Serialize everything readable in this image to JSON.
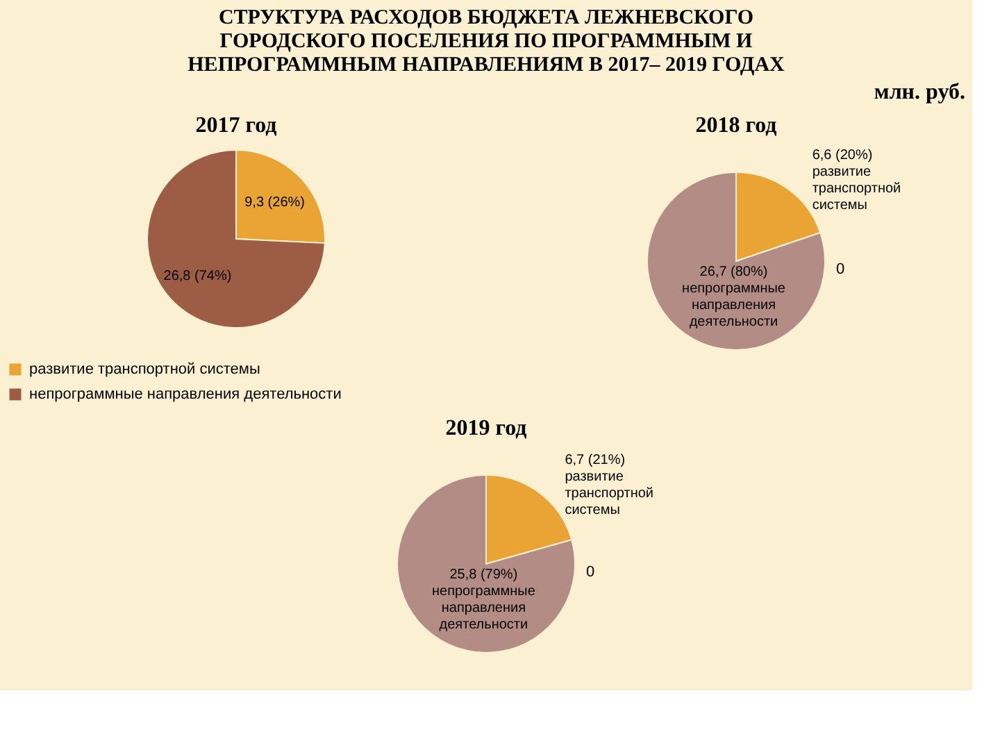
{
  "chart_data": [
    {
      "type": "other",
      "title": "СТРУКТУРА РАСХОДОВ БЮДЖЕТА ЛЕЖНЕВСКОГО ГОРОДСКОГО ПОСЕЛЕНИЯ ПО ПРОГРАММНЫМ И НЕПРОГРАММНЫМ НАПРАВЛЕНИЯМ В 2017– 2019 ГОДАХ",
      "annotations": [
        "млн. руб."
      ]
    },
    {
      "type": "pie",
      "title": "2017 год",
      "categories": [
        "развитие транспортной системы",
        "непрограммные направления деятельности"
      ],
      "values": [
        9.3,
        26.8
      ],
      "colors": [
        "#e9a434",
        "#9d5d45"
      ],
      "value_labels": [
        "9,3 (26%)",
        "26,8 (74%)"
      ],
      "legend": "bottom"
    },
    {
      "type": "pie",
      "title": "2018 год",
      "categories": [
        "развитие транспортной системы",
        "непрограммные направления деятельности"
      ],
      "values": [
        6.6,
        26.7
      ],
      "colors": [
        "#e9a434",
        "#b38d85"
      ],
      "value_labels": [
        "6,6 (20%)",
        "26,7 (80%)"
      ],
      "annotations": [
        "0"
      ]
    },
    {
      "type": "pie",
      "title": "2019 год",
      "categories": [
        "развитие транспортной системы",
        "непрограммные направления деятельности"
      ],
      "values": [
        6.7,
        25.8
      ],
      "colors": [
        "#e9a434",
        "#b38d85"
      ],
      "value_labels": [
        "6,7 (21%)",
        "25,8 (79%)"
      ],
      "annotations": [
        "0"
      ]
    }
  ]
}
